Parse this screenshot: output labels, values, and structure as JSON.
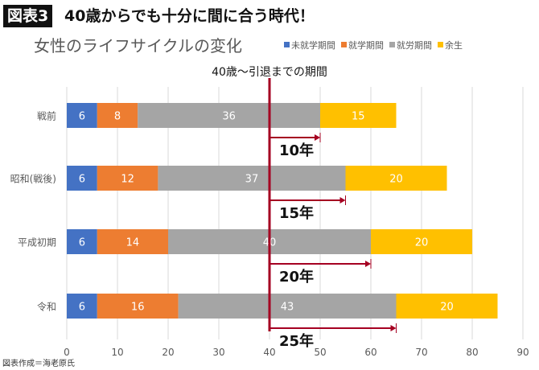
{
  "header": {
    "badge": "図表3",
    "headline": "40歳からでも十分に間に合う時代！"
  },
  "credit": "図表作成＝海老原氏",
  "chart_data": {
    "type": "bar",
    "orientation": "horizontal-stacked",
    "title": "女性のライフサイクルの変化",
    "annotation": "40歳～引退までの期間",
    "categories": [
      "戦前",
      "昭和(戦後)",
      "平成初期",
      "令和"
    ],
    "series": [
      {
        "name": "未就学期間",
        "color": "#4472C4",
        "values": [
          6,
          6,
          6,
          6
        ]
      },
      {
        "name": "就学期間",
        "color": "#ED7D31",
        "values": [
          8,
          12,
          14,
          16
        ]
      },
      {
        "name": "就労期間",
        "color": "#A5A5A5",
        "values": [
          36,
          37,
          40,
          43
        ]
      },
      {
        "name": "余生",
        "color": "#FFC000",
        "values": [
          15,
          20,
          20,
          20
        ]
      }
    ],
    "reference_line": {
      "x": 40,
      "color": "#A50021"
    },
    "spans": [
      {
        "from": 40,
        "to": 50,
        "label": "10年"
      },
      {
        "from": 40,
        "to": 55,
        "label": "15年"
      },
      {
        "from": 40,
        "to": 60,
        "label": "20年"
      },
      {
        "from": 40,
        "to": 65,
        "label": "25年"
      }
    ],
    "xlim": [
      0,
      90
    ],
    "xticks": [
      0,
      10,
      20,
      30,
      40,
      50,
      60,
      70,
      80,
      90
    ],
    "grid": true,
    "legend": "top-right"
  }
}
